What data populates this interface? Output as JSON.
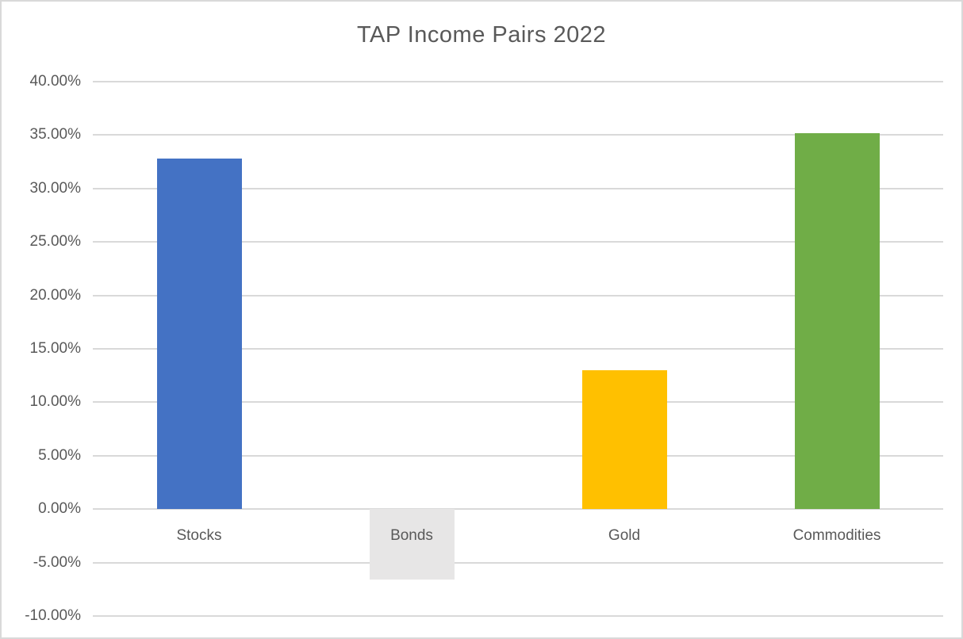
{
  "chart_data": {
    "type": "bar",
    "title": "TAP Income Pairs 2022",
    "categories": [
      "Stocks",
      "Bonds",
      "Gold",
      "Commodities"
    ],
    "values": [
      32.8,
      -6.6,
      13.0,
      35.2
    ],
    "value_unit": "percent",
    "bar_colors": [
      "#4472C4",
      "#E7E6E6",
      "#FFC000",
      "#70AD47"
    ],
    "ylim": [
      -10,
      40
    ],
    "ytick_step": 5,
    "yticks": [
      {
        "value": 40,
        "label": "40.00%"
      },
      {
        "value": 35,
        "label": "35.00%"
      },
      {
        "value": 30,
        "label": "30.00%"
      },
      {
        "value": 25,
        "label": "25.00%"
      },
      {
        "value": 20,
        "label": "20.00%"
      },
      {
        "value": 15,
        "label": "15.00%"
      },
      {
        "value": 10,
        "label": "10.00%"
      },
      {
        "value": 5,
        "label": "5.00%"
      },
      {
        "value": 0,
        "label": "0.00%"
      },
      {
        "value": -5,
        "label": "-5.00%"
      },
      {
        "value": -10,
        "label": "-10.00%"
      }
    ],
    "grid": true,
    "legend": "none",
    "xlabel": "",
    "ylabel": "",
    "colors": {
      "gridline": "#D9D9D9",
      "axis_text": "#595959",
      "title_text": "#595959",
      "background": "#FFFFFF",
      "frame_border": "#D9D9D9"
    }
  }
}
